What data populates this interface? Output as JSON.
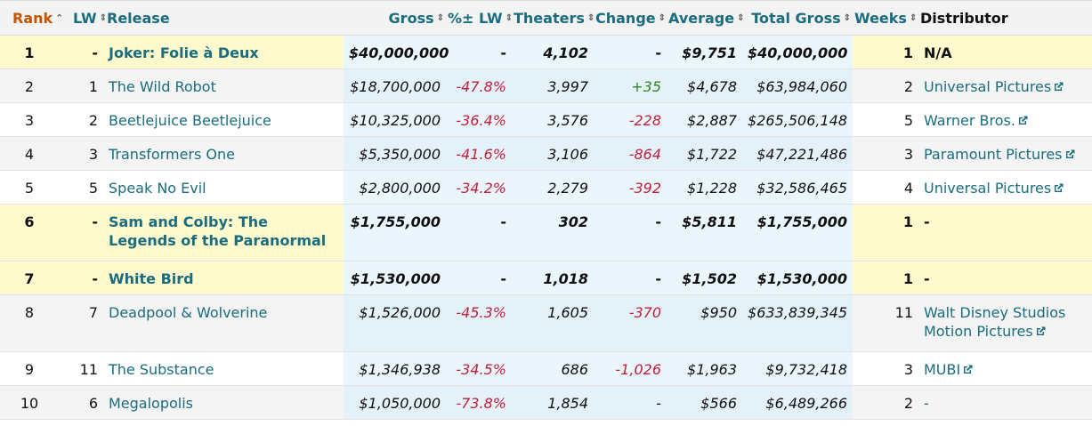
{
  "headers": {
    "rank": "Rank",
    "lw": "LW",
    "release": "Release",
    "gross": "Gross",
    "pct_lw": "%± LW",
    "theaters": "Theaters",
    "change": "Change",
    "average": "Average",
    "total_gross": "Total Gross",
    "weeks": "Weeks",
    "distributor": "Distributor"
  },
  "icons": {
    "sort": "sort-updown-icon",
    "sort_asc": "sort-ascending-icon",
    "external_link": "external-link-icon"
  },
  "colors": {
    "link": "#1a6d7e",
    "rank_header": "#c45500",
    "negative": "#c0203a",
    "positive": "#2e8b23",
    "new_release_bg": "#fffacd",
    "sorted_column_bg": "#eaf6fc"
  },
  "rows": [
    {
      "rank": "1",
      "lw": "-",
      "release": "Joker: Folie à Deux",
      "gross": "$40,000,000",
      "pct_lw": "-",
      "theaters": "4,102",
      "change": "-",
      "average": "$9,751",
      "total_gross": "$40,000,000",
      "weeks": "1",
      "distributor": "N/A"
    },
    {
      "rank": "2",
      "lw": "1",
      "release": "The Wild Robot",
      "gross": "$18,700,000",
      "pct_lw": "-47.8%",
      "theaters": "3,997",
      "change": "+35",
      "average": "$4,678",
      "total_gross": "$63,984,060",
      "weeks": "2",
      "distributor": "Universal Pictures"
    },
    {
      "rank": "3",
      "lw": "2",
      "release": "Beetlejuice Beetlejuice",
      "gross": "$10,325,000",
      "pct_lw": "-36.4%",
      "theaters": "3,576",
      "change": "-228",
      "average": "$2,887",
      "total_gross": "$265,506,148",
      "weeks": "5",
      "distributor": "Warner Bros."
    },
    {
      "rank": "4",
      "lw": "3",
      "release": "Transformers One",
      "gross": "$5,350,000",
      "pct_lw": "-41.6%",
      "theaters": "3,106",
      "change": "-864",
      "average": "$1,722",
      "total_gross": "$47,221,486",
      "weeks": "3",
      "distributor": "Paramount Pictures"
    },
    {
      "rank": "5",
      "lw": "5",
      "release": "Speak No Evil",
      "gross": "$2,800,000",
      "pct_lw": "-34.2%",
      "theaters": "2,279",
      "change": "-392",
      "average": "$1,228",
      "total_gross": "$32,586,465",
      "weeks": "4",
      "distributor": "Universal Pictures"
    },
    {
      "rank": "6",
      "lw": "-",
      "release": "Sam and Colby: The Legends of the Paranormal",
      "gross": "$1,755,000",
      "pct_lw": "-",
      "theaters": "302",
      "change": "-",
      "average": "$5,811",
      "total_gross": "$1,755,000",
      "weeks": "1",
      "distributor": "-"
    },
    {
      "rank": "7",
      "lw": "-",
      "release": "White Bird",
      "gross": "$1,530,000",
      "pct_lw": "-",
      "theaters": "1,018",
      "change": "-",
      "average": "$1,502",
      "total_gross": "$1,530,000",
      "weeks": "1",
      "distributor": "-"
    },
    {
      "rank": "8",
      "lw": "7",
      "release": "Deadpool & Wolverine",
      "gross": "$1,526,000",
      "pct_lw": "-45.3%",
      "theaters": "1,605",
      "change": "-370",
      "average": "$950",
      "total_gross": "$633,839,345",
      "weeks": "11",
      "distributor": "Walt Disney Studios Motion Pictures"
    },
    {
      "rank": "9",
      "lw": "11",
      "release": "The Substance",
      "gross": "$1,346,938",
      "pct_lw": "-34.5%",
      "theaters": "686",
      "change": "-1,026",
      "average": "$1,963",
      "total_gross": "$9,732,418",
      "weeks": "3",
      "distributor": "MUBI"
    },
    {
      "rank": "10",
      "lw": "6",
      "release": "Megalopolis",
      "gross": "$1,050,000",
      "pct_lw": "-73.8%",
      "theaters": "1,854",
      "change": "-",
      "average": "$566",
      "total_gross": "$6,489,266",
      "weeks": "2",
      "distributor": "-"
    }
  ]
}
